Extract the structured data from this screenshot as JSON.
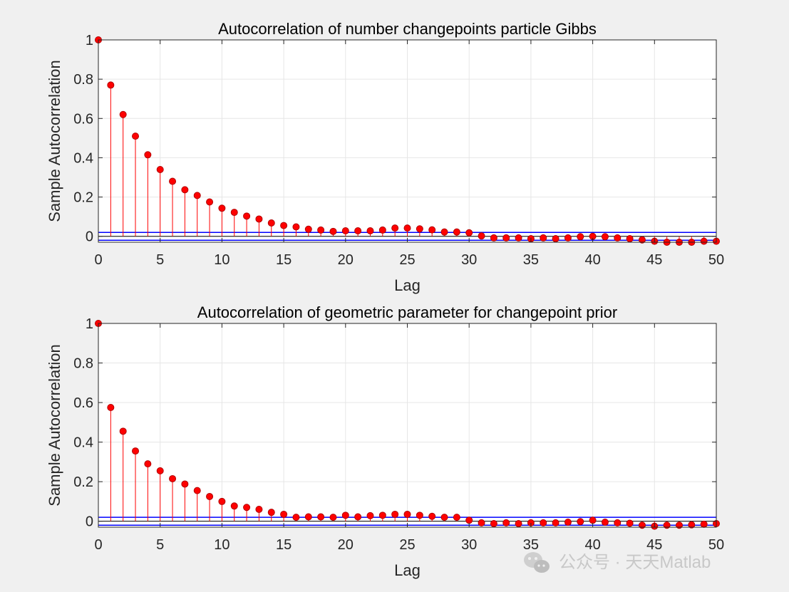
{
  "chart_data": [
    {
      "type": "stem",
      "title": "Autocorrelation of number changepoints particle Gibbs",
      "xlabel": "Lag",
      "ylabel": "Sample Autocorrelation",
      "xlim": [
        0,
        50
      ],
      "ylim": [
        -0.03,
        1
      ],
      "xticks": [
        0,
        5,
        10,
        15,
        20,
        25,
        30,
        35,
        40,
        45,
        50
      ],
      "yticks": [
        0,
        0.2,
        0.4,
        0.6,
        0.8,
        1
      ],
      "ytick_labels": [
        "0",
        "0.2",
        "0.4",
        "0.6",
        "0.8",
        "1"
      ],
      "grid": true,
      "confidence_bounds": [
        0.02,
        -0.02
      ],
      "x": [
        0,
        1,
        2,
        3,
        4,
        5,
        6,
        7,
        8,
        9,
        10,
        11,
        12,
        13,
        14,
        15,
        16,
        17,
        18,
        19,
        20,
        21,
        22,
        23,
        24,
        25,
        26,
        27,
        28,
        29,
        30,
        31,
        32,
        33,
        34,
        35,
        36,
        37,
        38,
        39,
        40,
        41,
        42,
        43,
        44,
        45,
        46,
        47,
        48,
        49,
        50
      ],
      "values": [
        1.0,
        0.77,
        0.62,
        0.51,
        0.415,
        0.34,
        0.28,
        0.237,
        0.208,
        0.175,
        0.143,
        0.122,
        0.103,
        0.088,
        0.068,
        0.055,
        0.048,
        0.036,
        0.032,
        0.025,
        0.028,
        0.028,
        0.028,
        0.032,
        0.042,
        0.042,
        0.038,
        0.033,
        0.022,
        0.022,
        0.018,
        0.002,
        -0.008,
        -0.008,
        -0.008,
        -0.012,
        -0.008,
        -0.012,
        -0.008,
        -0.002,
        0.0,
        -0.002,
        -0.008,
        -0.012,
        -0.018,
        -0.025,
        -0.03,
        -0.03,
        -0.03,
        -0.025,
        -0.025
      ]
    },
    {
      "type": "stem",
      "title": "Autocorrelation of geometric parameter for changepoint prior",
      "xlabel": "Lag",
      "ylabel": "Sample Autocorrelation",
      "xlim": [
        0,
        50
      ],
      "ylim": [
        -0.03,
        1
      ],
      "xticks": [
        0,
        5,
        10,
        15,
        20,
        25,
        30,
        35,
        40,
        45,
        50
      ],
      "yticks": [
        0,
        0.2,
        0.4,
        0.6,
        0.8,
        1
      ],
      "ytick_labels": [
        "0",
        "0.2",
        "0.4",
        "0.6",
        "0.8",
        "1"
      ],
      "grid": true,
      "confidence_bounds": [
        0.02,
        -0.02
      ],
      "x": [
        0,
        1,
        2,
        3,
        4,
        5,
        6,
        7,
        8,
        9,
        10,
        11,
        12,
        13,
        14,
        15,
        16,
        17,
        18,
        19,
        20,
        21,
        22,
        23,
        24,
        25,
        26,
        27,
        28,
        29,
        30,
        31,
        32,
        33,
        34,
        35,
        36,
        37,
        38,
        39,
        40,
        41,
        42,
        43,
        44,
        45,
        46,
        47,
        48,
        49,
        50
      ],
      "values": [
        1.0,
        0.575,
        0.455,
        0.355,
        0.29,
        0.255,
        0.215,
        0.188,
        0.155,
        0.125,
        0.1,
        0.077,
        0.07,
        0.06,
        0.045,
        0.035,
        0.02,
        0.022,
        0.022,
        0.02,
        0.03,
        0.022,
        0.028,
        0.03,
        0.035,
        0.035,
        0.03,
        0.025,
        0.02,
        0.02,
        0.005,
        -0.008,
        -0.012,
        -0.008,
        -0.012,
        -0.008,
        -0.008,
        -0.008,
        -0.005,
        -0.002,
        0.005,
        -0.005,
        -0.008,
        -0.01,
        -0.02,
        -0.025,
        -0.02,
        -0.02,
        -0.018,
        -0.015,
        -0.012
      ]
    }
  ],
  "watermark": {
    "text": "公众号 · 天天Matlab",
    "icon": "wechat-icon"
  },
  "colors": {
    "stem": "#ff0000",
    "marker": "#ff0000",
    "marker_edge": "#b00000",
    "bounds": "#0000ff",
    "zero_line": "#000000",
    "grid": "#e6e6e6",
    "axes_bg": "#ffffff",
    "figure_bg": "#f0f0f0",
    "axis": "#262626"
  }
}
